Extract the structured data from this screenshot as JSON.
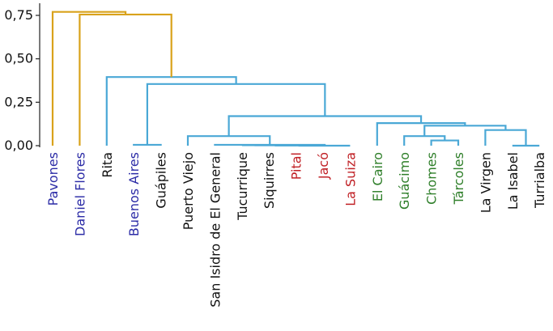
{
  "chart_data": {
    "type": "dendrogram",
    "title": "",
    "xlabel": "",
    "ylabel": "",
    "ylim": [
      0,
      0.78
    ],
    "yticks": [
      0.0,
      0.25,
      0.5,
      0.75
    ],
    "ytick_labels": [
      "0,00",
      "0,25",
      "0,50",
      "0,75"
    ],
    "colors": {
      "orange_cluster": "#d9a21b",
      "blue_cluster": "#4aa8d6",
      "label_blue": "#2b2ba6",
      "label_red": "#c02025",
      "label_green": "#2f7f2a",
      "label_black": "#111111"
    },
    "leaves": [
      {
        "name": "Pavones",
        "color": "label_blue"
      },
      {
        "name": "Daniel Flores",
        "color": "label_blue"
      },
      {
        "name": "Rita",
        "color": "label_black"
      },
      {
        "name": "Buenos Aires",
        "color": "label_blue"
      },
      {
        "name": "Guápiles",
        "color": "label_black"
      },
      {
        "name": "Puerto Viejo",
        "color": "label_black"
      },
      {
        "name": "San Isidro de El General",
        "color": "label_black"
      },
      {
        "name": "Tucurrique",
        "color": "label_black"
      },
      {
        "name": "Siquirres",
        "color": "label_black"
      },
      {
        "name": "Pital",
        "color": "label_red"
      },
      {
        "name": "Jacó",
        "color": "label_red"
      },
      {
        "name": "La Suiza",
        "color": "label_red"
      },
      {
        "name": "El Cairo",
        "color": "label_green"
      },
      {
        "name": "Guácimo",
        "color": "label_green"
      },
      {
        "name": "Chomes",
        "color": "label_green"
      },
      {
        "name": "Tárcoles",
        "color": "label_green"
      },
      {
        "name": "La Virgen",
        "color": "label_black"
      },
      {
        "name": "La Isabel",
        "color": "label_black"
      },
      {
        "name": "Turrialba",
        "color": "label_black"
      }
    ],
    "merges": [
      {
        "left": "leaf:3",
        "right": "leaf:4",
        "height": 0.005,
        "color": "blue_cluster"
      },
      {
        "left": "leaf:7",
        "right": "leaf:8",
        "height": 0.003,
        "color": "blue_cluster"
      },
      {
        "left": "node:1",
        "right": "leaf:9",
        "height": 0.002,
        "color": "blue_cluster"
      },
      {
        "left": "node:2",
        "right": "leaf:10",
        "height": 0.001,
        "color": "blue_cluster"
      },
      {
        "left": "node:3",
        "right": "leaf:11",
        "height": 0.0,
        "color": "blue_cluster"
      },
      {
        "left": "leaf:6",
        "right": "node:4",
        "height": 0.005,
        "color": "blue_cluster"
      },
      {
        "left": "leaf:5",
        "right": "node:5",
        "height": 0.055,
        "color": "blue_cluster"
      },
      {
        "left": "leaf:14",
        "right": "leaf:15",
        "height": 0.03,
        "color": "blue_cluster"
      },
      {
        "left": "leaf:13",
        "right": "node:7",
        "height": 0.055,
        "color": "blue_cluster"
      },
      {
        "left": "leaf:17",
        "right": "leaf:18",
        "height": 0.0,
        "color": "blue_cluster"
      },
      {
        "left": "leaf:16",
        "right": "node:9",
        "height": 0.09,
        "color": "blue_cluster"
      },
      {
        "left": "node:8",
        "right": "node:10",
        "height": 0.115,
        "color": "blue_cluster"
      },
      {
        "left": "node:11",
        "right": "leaf:12",
        "height": 0.13,
        "color": "blue_cluster"
      },
      {
        "left": "node:6",
        "right": "node:12",
        "height": 0.17,
        "color": "blue_cluster"
      },
      {
        "left": "node:0",
        "right": "node:13",
        "height": 0.355,
        "color": "blue_cluster"
      },
      {
        "left": "leaf:2",
        "right": "node:14",
        "height": 0.395,
        "color": "blue_cluster"
      },
      {
        "left": "leaf:1",
        "right": "node:15",
        "height": 0.755,
        "color": "orange_cluster"
      },
      {
        "left": "leaf:0",
        "right": "node:16",
        "height": 0.77,
        "color": "orange_cluster"
      }
    ]
  }
}
